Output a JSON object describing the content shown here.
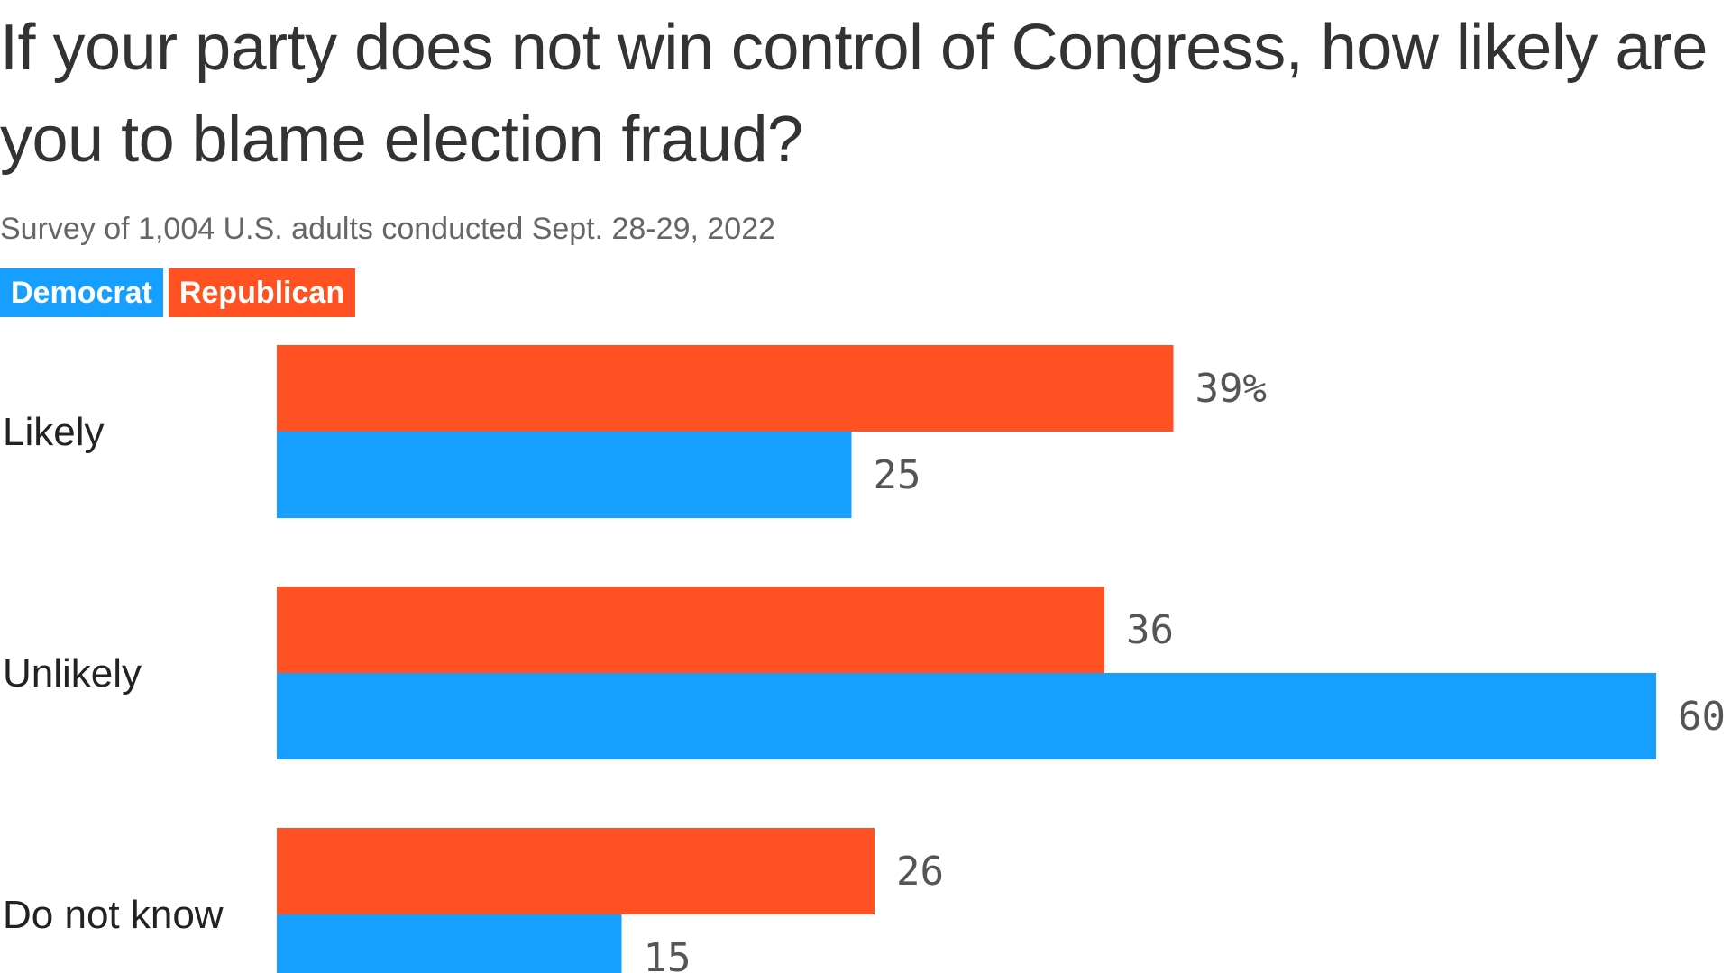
{
  "title": "If your party does not win control of Congress, how likely are you to blame election fraud?",
  "subtitle": "Survey of 1,004 U.S. adults conducted Sept. 28-29, 2022",
  "legend": [
    {
      "label": "Democrat",
      "color": "#179fff"
    },
    {
      "label": "Republican",
      "color": "#ff5122"
    }
  ],
  "chart_data": {
    "type": "bar",
    "orientation": "horizontal",
    "categories": [
      "Likely",
      "Unlikely",
      "Do not know"
    ],
    "series": [
      {
        "name": "Republican",
        "color": "#ff5122",
        "values": [
          39,
          36,
          26
        ],
        "labels": [
          "39%",
          "36",
          "26"
        ]
      },
      {
        "name": "Democrat",
        "color": "#179fff",
        "values": [
          25,
          60,
          15
        ],
        "labels": [
          "25",
          "60",
          "15"
        ]
      }
    ],
    "xlim": [
      0,
      60
    ],
    "grid": false,
    "legend_position": "top-left"
  }
}
